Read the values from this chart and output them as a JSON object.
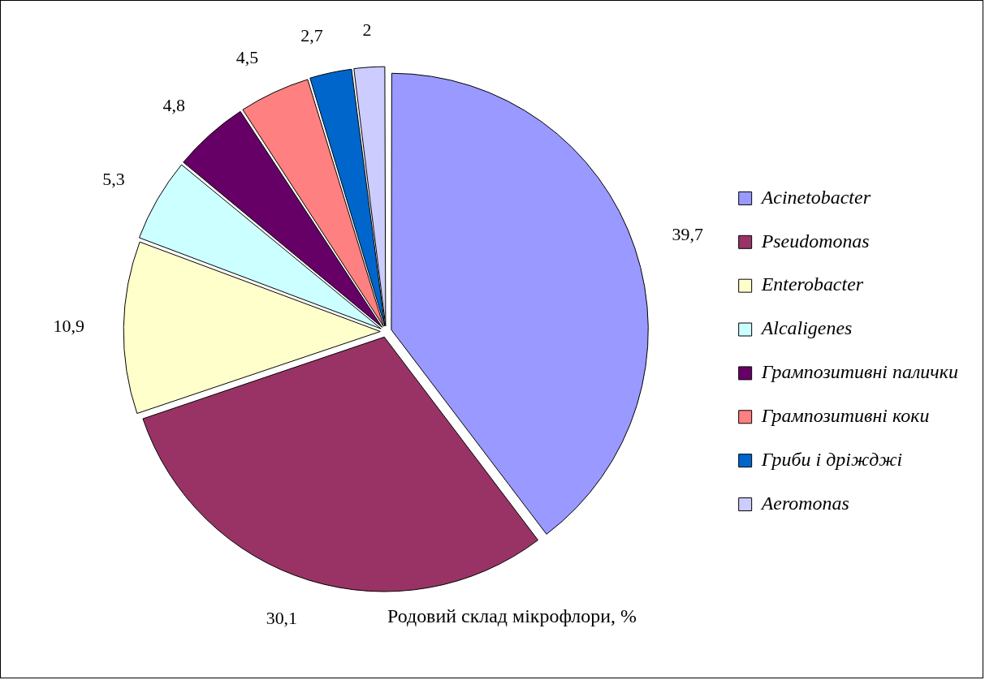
{
  "chart_data": {
    "type": "pie",
    "title": "Родовий склад мікрофлори, %",
    "categories": [
      "Acinetobacter",
      "Pseudomonas",
      "Enterobacter",
      "Alcaligenes",
      "Грампозитивні палички",
      "Грампозитивні коки",
      "Гриби і дріжджі",
      "Aeromonas"
    ],
    "values": [
      39.7,
      30.1,
      10.9,
      5.3,
      4.8,
      4.5,
      2.7,
      2
    ],
    "colors": [
      "#9999ff",
      "#993366",
      "#ffffcc",
      "#ccffff",
      "#660066",
      "#ff8080",
      "#0066cc",
      "#ccccff"
    ],
    "value_labels": [
      "39,7",
      "30,1",
      "10,9",
      "5,3",
      "4,8",
      "4,5",
      "2,7",
      "2"
    ],
    "legend": "right"
  }
}
